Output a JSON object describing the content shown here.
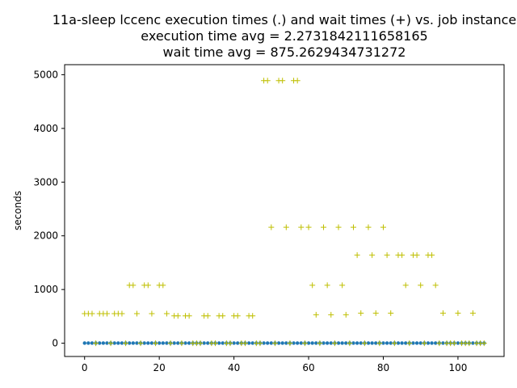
{
  "chart_data": {
    "type": "scatter",
    "title_lines": [
      "11a-sleep lccenc execution times (.) and wait times (+) vs. job instance",
      "execution time avg = 2.2731842111658165",
      "wait time avg = 875.2629434731272"
    ],
    "xlabel": "",
    "ylabel": "seconds",
    "xlim": [
      -5.35,
      112.35
    ],
    "ylim": [
      -247,
      5187
    ],
    "xticks": [
      0,
      20,
      40,
      60,
      80,
      100
    ],
    "yticks": [
      0,
      1000,
      2000,
      3000,
      4000,
      5000
    ],
    "grid": false,
    "colors": {
      "execution": "#1f77b4",
      "wait": "#bfbf00"
    },
    "series": [
      {
        "marker": "dot",
        "x": [
          0,
          1,
          2,
          3,
          4,
          5,
          6,
          7,
          8,
          9,
          10,
          11,
          12,
          13,
          14,
          15,
          16,
          17,
          18,
          19,
          20,
          21,
          22,
          23,
          24,
          25,
          26,
          27,
          28,
          29,
          30,
          31,
          32,
          33,
          34,
          35,
          36,
          37,
          38,
          39,
          40,
          41,
          42,
          43,
          44,
          45,
          46,
          47,
          48,
          49,
          50,
          51,
          52,
          53,
          54,
          55,
          56,
          57,
          58,
          59,
          60,
          61,
          62,
          63,
          64,
          65,
          66,
          67,
          68,
          69,
          70,
          71,
          72,
          73,
          74,
          75,
          76,
          77,
          78,
          79,
          80,
          81,
          82,
          83,
          84,
          85,
          86,
          87,
          88,
          89,
          90,
          91,
          92,
          93,
          94,
          95,
          96,
          97,
          98,
          99,
          100,
          101,
          102,
          103,
          104,
          105,
          106,
          107
        ],
        "y": [
          2,
          2,
          2,
          2,
          2,
          2,
          2,
          2,
          2,
          2,
          2,
          2,
          2,
          2,
          2,
          2,
          2,
          2,
          2,
          2,
          2,
          2,
          2,
          2,
          2,
          2,
          2,
          2,
          2,
          2,
          2,
          2,
          2,
          2,
          2,
          2,
          2,
          2,
          2,
          2,
          2,
          2,
          2,
          2,
          2,
          2,
          2,
          2,
          2,
          2,
          2,
          2,
          2,
          2,
          2,
          2,
          2,
          2,
          2,
          2,
          2,
          2,
          2,
          2,
          2,
          2,
          2,
          2,
          2,
          2,
          2,
          2,
          2,
          2,
          2,
          2,
          2,
          2,
          2,
          2,
          2,
          2,
          2,
          2,
          2,
          2,
          2,
          2,
          2,
          2,
          2,
          2,
          2,
          2,
          2,
          2,
          2,
          2,
          2,
          2,
          2,
          2,
          2,
          2,
          2,
          2,
          2,
          2
        ]
      },
      {
        "marker": "plus",
        "x": [
          0,
          1,
          2,
          4,
          5,
          6,
          8,
          9,
          10,
          12,
          13,
          14,
          16,
          17,
          18,
          20,
          21,
          22,
          24,
          25,
          27,
          28,
          32,
          33,
          36,
          37,
          40,
          41,
          44,
          45,
          48,
          49,
          50,
          52,
          53,
          54,
          56,
          57,
          58,
          60,
          61,
          62,
          64,
          65,
          66,
          68,
          69,
          70,
          72,
          73,
          74,
          76,
          77,
          78,
          80,
          81,
          82,
          84,
          85,
          86,
          88,
          89,
          90,
          92,
          93,
          94,
          96,
          100,
          104,
          3,
          7,
          11,
          15,
          19,
          23,
          26,
          29,
          30,
          31,
          34,
          35,
          38,
          39,
          42,
          43,
          46,
          47,
          51,
          55,
          59,
          63,
          67,
          71,
          75,
          79,
          83,
          87,
          91,
          95,
          97,
          98,
          99,
          101,
          102,
          103,
          105,
          106,
          107
        ],
        "y": [
          550,
          550,
          550,
          550,
          550,
          550,
          550,
          550,
          550,
          1080,
          1080,
          550,
          1080,
          1080,
          550,
          1080,
          1080,
          550,
          510,
          510,
          510,
          510,
          510,
          510,
          510,
          510,
          510,
          510,
          510,
          510,
          4890,
          4890,
          2160,
          4890,
          4890,
          2160,
          4890,
          4890,
          2160,
          2160,
          1080,
          530,
          2160,
          1080,
          530,
          2160,
          1080,
          530,
          2160,
          1640,
          560,
          2160,
          1640,
          560,
          2160,
          1640,
          560,
          1640,
          1640,
          1080,
          1640,
          1640,
          1080,
          1640,
          1640,
          1080,
          560,
          560,
          560,
          0,
          0,
          0,
          0,
          0,
          0,
          0,
          0,
          0,
          0,
          0,
          0,
          0,
          0,
          0,
          0,
          0,
          0,
          0,
          0,
          0,
          0,
          0,
          0,
          0,
          0,
          0,
          0,
          0,
          0,
          0,
          0,
          0,
          0,
          0,
          0,
          0,
          0,
          0
        ]
      }
    ]
  }
}
